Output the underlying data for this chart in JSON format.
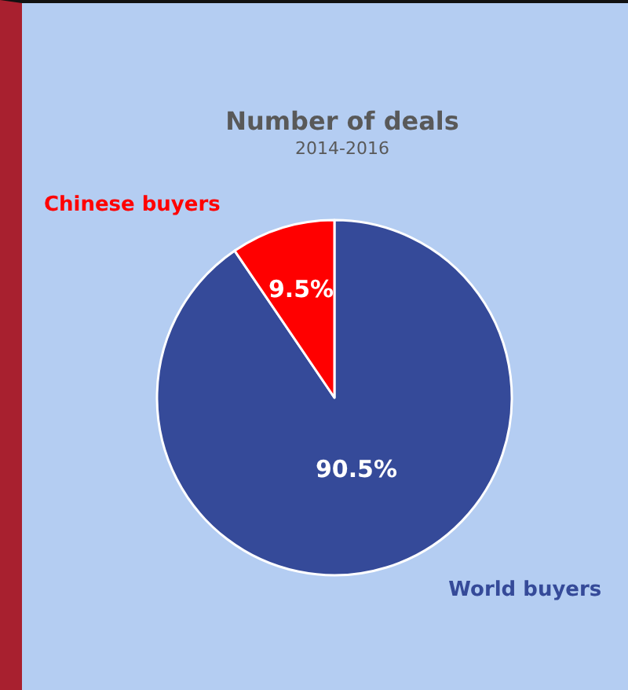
{
  "chart_data": {
    "type": "pie",
    "title": "Number of deals",
    "subtitle": "2014-2016",
    "categories": [
      "World buyers",
      "Chinese buyers"
    ],
    "values": [
      90.5,
      9.5
    ],
    "colors": [
      "#354a99",
      "#ff0000"
    ],
    "value_labels": [
      "90.5%",
      "9.5%"
    ],
    "legend": false
  }
}
